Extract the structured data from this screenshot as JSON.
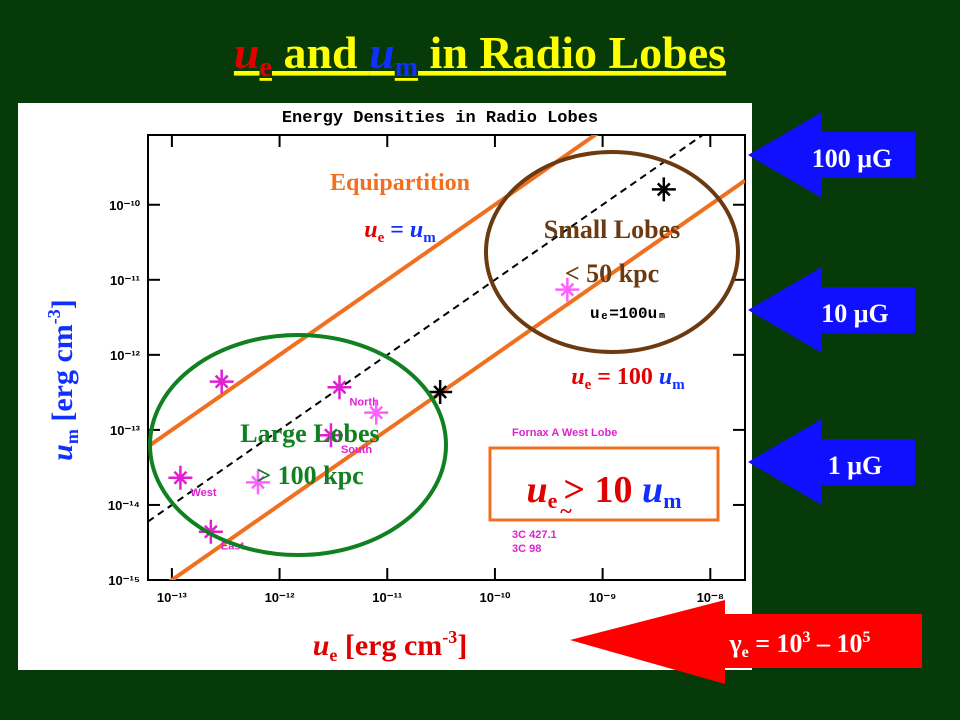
{
  "title": {
    "u1": "u",
    "s1": "e",
    "mid": " and ",
    "u2": "u",
    "s2": "m",
    "end": " in Radio Lobes"
  },
  "chart_data": {
    "type": "scatter",
    "title": "Energy Densities in Radio Lobes",
    "x": [
      2.9e-13,
      1.2e-13,
      2.3e-13,
      6.3e-13,
      3.6e-12,
      3e-12,
      7.9e-12,
      3.1e-11,
      4.7e-10,
      3.7e-09
    ],
    "values": [
      4.4e-13,
      2.3e-14,
      4.4e-15,
      2e-14,
      3.7e-13,
      8.5e-14,
      1.7e-13,
      3.2e-13,
      7.4e-12,
      1.6e-10
    ],
    "colors": [
      "#e020d0",
      "#e020d0",
      "#e020d0",
      "#ff60ff",
      "#e020d0",
      "#e020d0",
      "#ff60ff",
      "#000000",
      "#ff60ff",
      "#000000"
    ],
    "point_labels": [
      null,
      "West",
      "East",
      null,
      "North",
      "South",
      null,
      null,
      null,
      null
    ],
    "xlim": [
      6e-14,
      2.1e-08
    ],
    "ylim": [
      1e-15,
      8.5e-10
    ],
    "log_x": true,
    "log_y": true,
    "xticks": [
      {
        "value": 1e-13,
        "label": "10⁻¹³"
      },
      {
        "value": 1e-12,
        "label": "10⁻¹²"
      },
      {
        "value": 1e-11,
        "label": "10⁻¹¹"
      },
      {
        "value": 1e-10,
        "label": "10⁻¹⁰"
      },
      {
        "value": 1e-09,
        "label": "10⁻⁹"
      },
      {
        "value": 1e-08,
        "label": "10⁻⁸"
      }
    ],
    "yticks": [
      {
        "value": 1e-15,
        "label": "10⁻¹⁵"
      },
      {
        "value": 1e-14,
        "label": "10⁻¹⁴"
      },
      {
        "value": 1e-13,
        "label": "10⁻¹³"
      },
      {
        "value": 1e-12,
        "label": "10⁻¹²"
      },
      {
        "value": 1e-11,
        "label": "10⁻¹¹"
      },
      {
        "value": 1e-10,
        "label": "10⁻¹⁰"
      }
    ],
    "reference_lines": [
      {
        "ratio": 1,
        "color": "#f07020",
        "dash": false
      },
      {
        "ratio": 10,
        "color": "#000000",
        "dash": true
      },
      {
        "ratio": 100,
        "color": "#f07020",
        "dash": false
      }
    ],
    "in_plot_label": "uₑ=100uₘ",
    "legend_entries": [
      "Fornax A West Lobe",
      "3C 427.1",
      "3C 98"
    ]
  },
  "x_label": {
    "main": "u",
    "sub": "e",
    "unit": " [erg cm",
    "exp": "-3",
    "close": "]"
  },
  "y_label": {
    "main": "u",
    "sub": "m",
    "unit": " [erg cm",
    "exp": "-3",
    "close": "]"
  },
  "annotations": {
    "equipartition": "Equipartition",
    "eq": {
      "u1": "u",
      "s1": "e",
      "mid": " = ",
      "u2": "u",
      "s2": "m"
    },
    "small": "Small Lobes",
    "small_size": "< 50 kpc",
    "large": "Large Lobes",
    "large_size": "> 100 kpc",
    "r100": {
      "u1": "u",
      "s1": "e",
      "mid": " = 100 ",
      "u2": "u",
      "s2": "m"
    }
  },
  "box": {
    "u1": "u",
    "s1": "e",
    "rel": ">",
    "tilde": "~",
    "ten": " 10 ",
    "u2": "u",
    "s2": "m"
  },
  "arrows": [
    "100 μG",
    "10 μG",
    "1 μG"
  ],
  "gamma": {
    "g": "γ",
    "sub": "e",
    "eq": " = 10",
    "e1": "3",
    "dash": " – 10",
    "e2": "5"
  }
}
